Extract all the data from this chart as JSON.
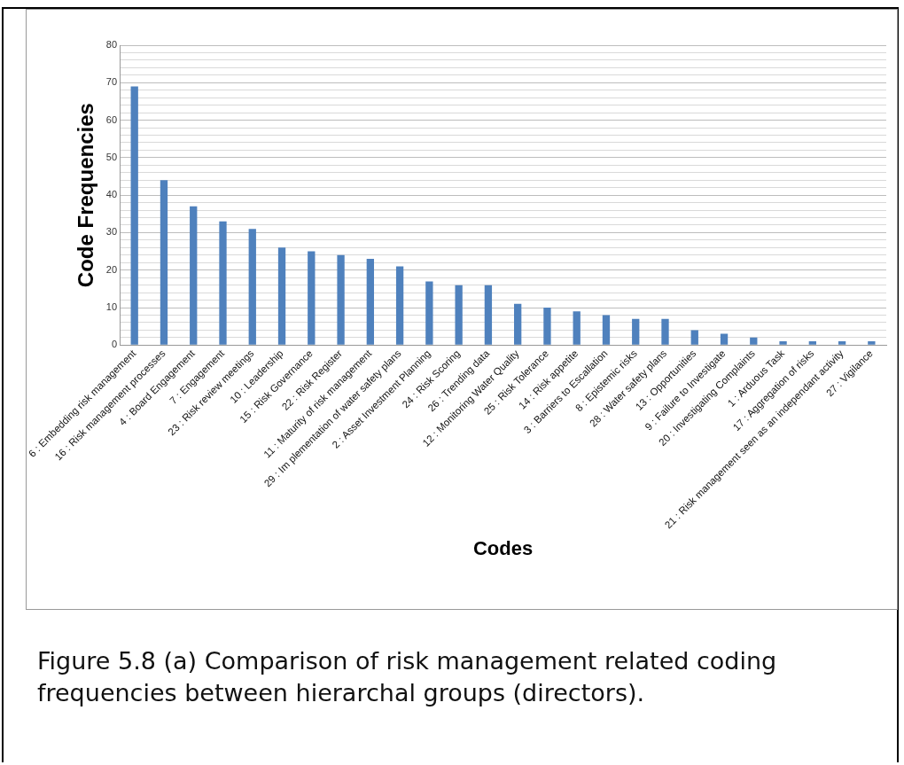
{
  "chart_data": {
    "type": "bar",
    "xlabel": "Codes",
    "ylabel": "Code Frequencies",
    "categories": [
      "6 : Embedding risk management",
      "16 : Risk management processes",
      "4 : Board Engagement",
      "7 : Engagement",
      "23 : Risk review meetings",
      "10 : Leadership",
      "15 : Risk Governance",
      "22 : Risk Register",
      "11 : Maturity of risk management",
      "29 : Im plementation of water safety plans",
      "2 : Asset Investment Planning",
      "24 : Risk Scoring",
      "26 : Trending data",
      "12 : Monitoring Water Quality",
      "25 : Risk Tolerance",
      "14 : Risk appetite",
      "3 : Barriers to Escallation",
      "8 : Epistemic risks",
      "28 : Water safety plans",
      "13 : Opportunities",
      "9 : Failure to Investigate",
      "20 : Investigating Complaints",
      "1 : Arduous Task",
      "17 : Aggregation of risks",
      "21 : Risk management seen as an independant activity",
      "27 : Vigilance"
    ],
    "values": [
      69,
      44,
      37,
      33,
      31,
      26,
      25,
      24,
      23,
      21,
      17,
      16,
      16,
      11,
      10,
      9,
      8,
      7,
      7,
      4,
      3,
      2,
      1,
      1,
      1,
      1
    ],
    "color": "#4f81bd",
    "ylim": [
      0,
      80
    ],
    "yticks": [
      0,
      {
        "value": 2,
        "label": null
      },
      {
        "value": 4,
        "label": null
      },
      {
        "value": 6,
        "label": null
      },
      {
        "value": 8,
        "label": null
      },
      10,
      {
        "value": 12,
        "label": null
      },
      {
        "value": 14,
        "label": null
      },
      {
        "value": 16,
        "label": null
      },
      {
        "value": 18,
        "label": null
      },
      20,
      {
        "value": 22,
        "label": null
      },
      {
        "value": 24,
        "label": null
      },
      {
        "value": 26,
        "label": null
      },
      {
        "value": 28,
        "label": null
      },
      30,
      {
        "value": 32,
        "label": null
      },
      {
        "value": 34,
        "label": null
      },
      {
        "value": 36,
        "label": null
      },
      {
        "value": 38,
        "label": null
      },
      40,
      {
        "value": 42,
        "label": null
      },
      {
        "value": 44,
        "label": null
      },
      {
        "value": 46,
        "label": null
      },
      {
        "value": 48,
        "label": null
      },
      50,
      {
        "value": 52,
        "label": null
      },
      {
        "value": 54,
        "label": null
      },
      {
        "value": 56,
        "label": null
      },
      {
        "value": 58,
        "label": null
      },
      60,
      {
        "value": 62,
        "label": null
      },
      {
        "value": 64,
        "label": null
      },
      {
        "value": 66,
        "label": null
      },
      {
        "value": 68,
        "label": null
      },
      70,
      {
        "value": 72,
        "label": null
      },
      {
        "value": 74,
        "label": null
      },
      {
        "value": 76,
        "label": null
      },
      {
        "value": 78,
        "label": null
      },
      80
    ],
    "grid": "y",
    "annotations": [
      "Figure 5.8 (a) Comparison of risk management related coding frequencies between hierarchal groups (directors)."
    ]
  }
}
